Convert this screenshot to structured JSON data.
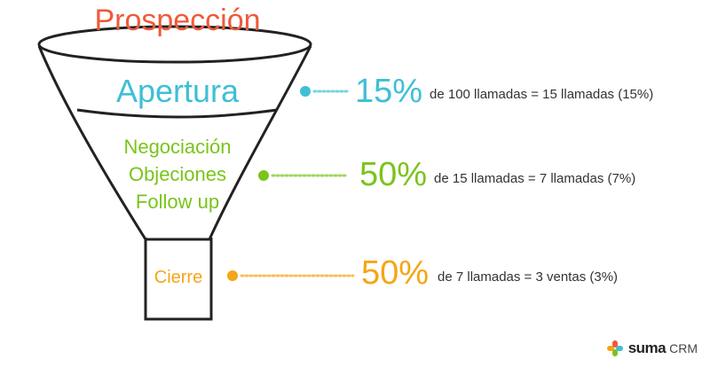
{
  "title": "Prospección",
  "colors": {
    "title": "#ef5a3a",
    "stage1": "#3fbfd6",
    "stage2": "#7ac41c",
    "stage3": "#f5a515",
    "outline": "#222222"
  },
  "stages": [
    {
      "label": "Apertura",
      "lines": [
        "Apertura"
      ],
      "percent": "15%",
      "description": "de 100 llamadas = 15 llamadas (15%)"
    },
    {
      "label": "Negociación Objeciones Follow up",
      "lines": [
        "Negociación",
        "Objeciones",
        "Follow up"
      ],
      "percent": "50%",
      "description": "de 15 llamadas = 7 llamadas (7%)"
    },
    {
      "label": "Cierre",
      "lines": [
        "Cierre"
      ],
      "percent": "50%",
      "description": "de 7 llamadas = 3 ventas (3%)"
    }
  ],
  "logo": {
    "brand": "suma",
    "suffix": "CRM",
    "icon": "suma-logo-icon"
  }
}
